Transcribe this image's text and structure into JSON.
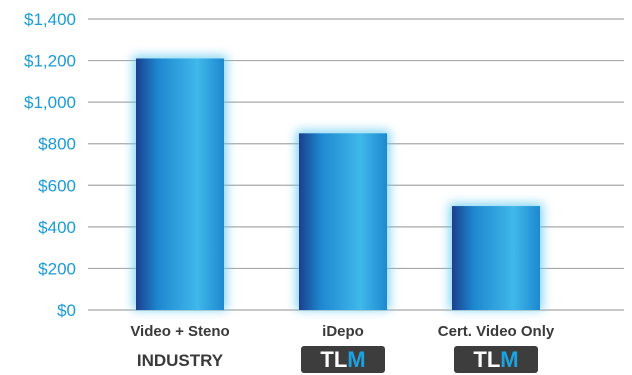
{
  "chart_data": {
    "type": "bar",
    "categories": [
      "Video + Steno",
      "iDepo",
      "Cert. Video Only"
    ],
    "values": [
      1210,
      850,
      500
    ],
    "ylim": [
      0,
      1400
    ],
    "y_ticks": [
      0,
      200,
      400,
      600,
      800,
      1000,
      1200,
      1400
    ],
    "y_tick_labels": [
      "$0",
      "$200",
      "$400",
      "$600",
      "$800",
      "$1,000",
      "$1,200",
      "$1,400"
    ],
    "category_sublabels": [
      "INDUSTRY",
      "TLM",
      "TLM"
    ],
    "sublabel_kinds": [
      "text",
      "logo",
      "logo"
    ],
    "grid": true,
    "legend": "none",
    "title": "",
    "xlabel": "",
    "ylabel": ""
  },
  "colors": {
    "bar_dark": "#1b3f8f",
    "bar_mid": "#1e88d0",
    "bar_light": "#3fb8ea",
    "glow": "#5cc8f2",
    "tick_text": "#1a9bd7",
    "category_text": "#3a3a3a",
    "gridline": "#a8a8a8",
    "logo_bg": "#3d3d3d",
    "logo_text": "#ffffff",
    "logo_accent": "#1aa3e0"
  },
  "icons": {
    "logo": "tlm-logo"
  }
}
